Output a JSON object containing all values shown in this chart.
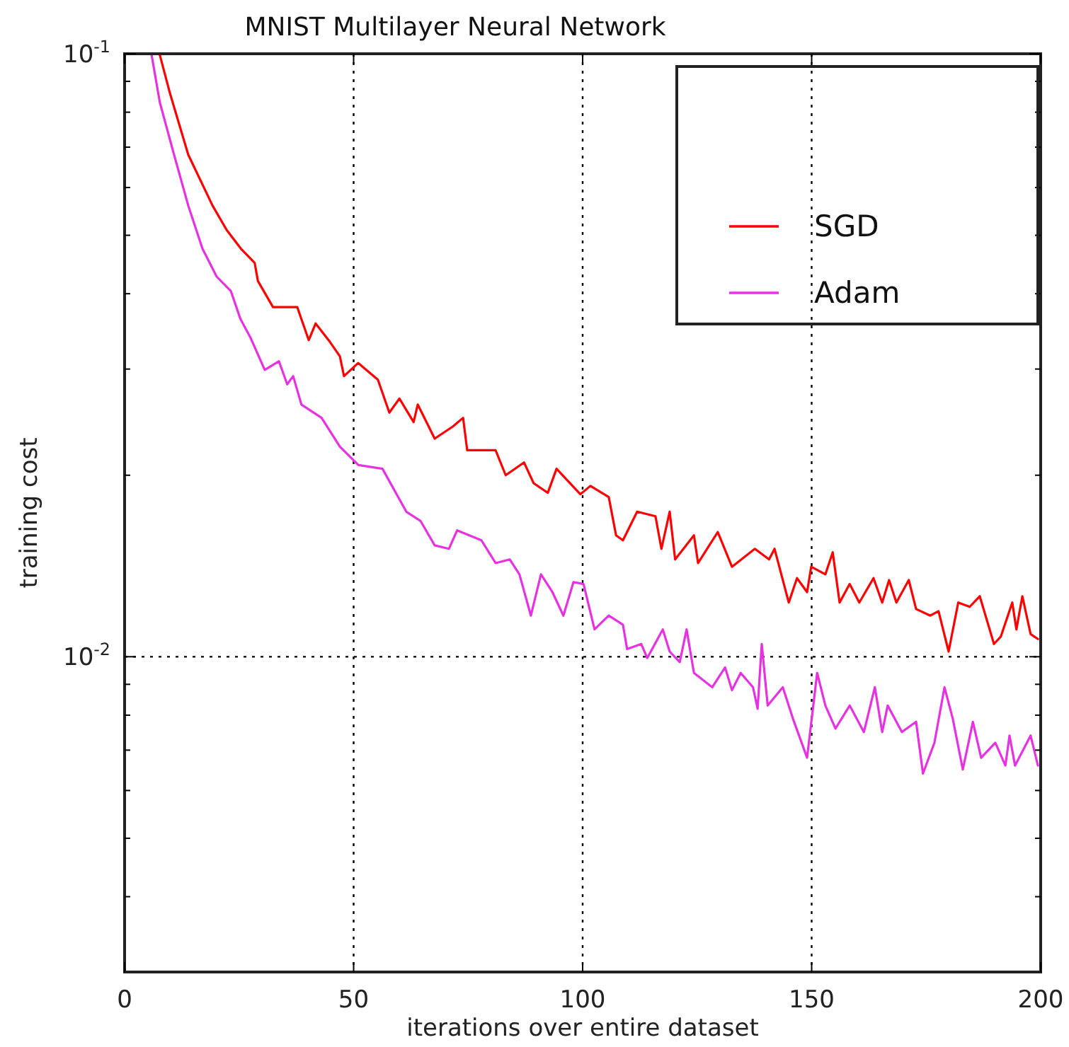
{
  "chart_data": {
    "type": "line",
    "title": "MNIST Multilayer Neural Network",
    "xlabel": "iterations over entire dataset",
    "ylabel": "training cost",
    "xlim": [
      0,
      200
    ],
    "xticks": [
      0,
      50,
      100,
      150,
      200
    ],
    "ylim": [
      0.003,
      0.1
    ],
    "log": "y",
    "yticks": [
      {
        "value": 0.004,
        "label": null
      },
      {
        "value": 0.005,
        "label": null
      },
      {
        "value": 0.006,
        "label": null
      },
      {
        "value": 0.007,
        "label": null
      },
      {
        "value": 0.008,
        "label": null
      },
      {
        "value": 0.009,
        "label": null
      },
      {
        "value": 0.01,
        "label": "10$^{-2}$"
      },
      {
        "value": 0.02,
        "label": null
      },
      {
        "value": 0.03,
        "label": null
      },
      {
        "value": 0.04,
        "label": null
      },
      {
        "value": 0.05,
        "label": null
      },
      {
        "value": 0.06,
        "label": null
      },
      {
        "value": 0.07,
        "label": null
      },
      {
        "value": 0.08,
        "label": null
      },
      {
        "value": 0.09,
        "label": null
      },
      {
        "value": 0.1,
        "label": "10$^{-1}$"
      }
    ],
    "grid": true,
    "legend": "top right",
    "line_style": "solid",
    "series": [
      {
        "name": "SGD",
        "color": "#ff0000",
        "x": [
          7.7,
          9.9,
          13.9,
          19.2,
          22.3,
          25.4,
          28.4,
          29.1,
          32.4,
          37.7,
          40.2,
          41.7,
          44.8,
          47,
          47.9,
          51,
          55.3,
          57.8,
          60,
          63.1,
          64,
          67.7,
          71.7,
          73.9,
          74.8,
          81,
          83.2,
          87.2,
          89.3,
          92.4,
          94.3,
          99.5,
          101.7,
          105.7,
          107.3,
          108.8,
          111.9,
          115.9,
          117.2,
          119,
          120.2,
          124.3,
          125.2,
          129.5,
          132.6,
          137.6,
          140.7,
          141.9,
          145,
          146.8,
          149,
          149.9,
          153,
          154.6,
          156.1,
          158.3,
          160.4,
          163.5,
          165.4,
          166.9,
          168.5,
          171.2,
          172.8,
          175.9,
          177.7,
          179.9,
          182,
          184.5,
          186.7,
          189.8,
          191.3,
          193.8,
          194.7,
          196,
          197.8,
          199.4
        ],
        "values": [
          0.0995,
          0.086,
          0.068,
          0.056,
          0.051,
          0.0475,
          0.045,
          0.042,
          0.038,
          0.038,
          0.0335,
          0.0357,
          0.0333,
          0.0315,
          0.0292,
          0.0307,
          0.0288,
          0.0254,
          0.0268,
          0.0245,
          0.0262,
          0.023,
          0.0241,
          0.0249,
          0.022,
          0.022,
          0.02,
          0.021,
          0.0194,
          0.0187,
          0.0205,
          0.0186,
          0.0192,
          0.0184,
          0.0159,
          0.0156,
          0.0174,
          0.0171,
          0.0151,
          0.0174,
          0.0145,
          0.0159,
          0.0143,
          0.0161,
          0.0141,
          0.0151,
          0.0145,
          0.0151,
          0.0123,
          0.0135,
          0.0128,
          0.0141,
          0.0137,
          0.0149,
          0.0123,
          0.0132,
          0.0123,
          0.0135,
          0.0123,
          0.0134,
          0.0123,
          0.0134,
          0.012,
          0.0117,
          0.0119,
          0.0102,
          0.0123,
          0.0121,
          0.0126,
          0.0105,
          0.0108,
          0.0123,
          0.0111,
          0.0126,
          0.0109,
          0.0107
        ]
      },
      {
        "name": "Adam",
        "color": "#e632e0",
        "x": [
          5.9,
          7.7,
          10.8,
          13.9,
          17,
          20.1,
          23.2,
          25.3,
          27.5,
          30.6,
          33.7,
          35.5,
          36.8,
          38.6,
          43,
          47,
          51,
          56.3,
          61.5,
          64.6,
          67.7,
          70.8,
          72.6,
          77.9,
          81,
          84.1,
          86.2,
          88.7,
          90.9,
          93.4,
          95.8,
          98,
          100.2,
          102.6,
          105.7,
          108.8,
          109.7,
          112.8,
          114.1,
          117.5,
          119,
          121.2,
          122.7,
          124.3,
          128.3,
          131.1,
          132.6,
          134.5,
          137.2,
          138.2,
          139.1,
          140.4,
          143.7,
          145.9,
          149,
          151.2,
          153,
          155.2,
          158.3,
          161.4,
          163.8,
          165.4,
          166.6,
          169.7,
          172.8,
          174.3,
          176.8,
          179,
          180.8,
          183,
          185.2,
          187,
          190.1,
          192.3,
          193.2,
          194.4,
          197.8,
          199.4
        ],
        "values": [
          0.0995,
          0.083,
          0.068,
          0.056,
          0.0475,
          0.0427,
          0.0404,
          0.0363,
          0.0338,
          0.0299,
          0.0309,
          0.0283,
          0.0292,
          0.0262,
          0.0249,
          0.0223,
          0.0208,
          0.0205,
          0.0174,
          0.0168,
          0.0153,
          0.0151,
          0.0162,
          0.0156,
          0.0143,
          0.0145,
          0.0137,
          0.0117,
          0.0137,
          0.0128,
          0.0117,
          0.0133,
          0.0132,
          0.0111,
          0.0117,
          0.0113,
          0.0103,
          0.0105,
          0.00995,
          0.0111,
          0.0102,
          0.0098,
          0.0111,
          0.0094,
          0.0089,
          0.0096,
          0.0088,
          0.0094,
          0.0089,
          0.0082,
          0.0105,
          0.0083,
          0.0089,
          0.0079,
          0.0068,
          0.0094,
          0.0083,
          0.0076,
          0.0083,
          0.0075,
          0.0089,
          0.0075,
          0.0083,
          0.0075,
          0.0078,
          0.0064,
          0.0072,
          0.0089,
          0.0079,
          0.0065,
          0.0078,
          0.0068,
          0.0072,
          0.0066,
          0.0074,
          0.0066,
          0.0074,
          0.0066
        ]
      }
    ]
  }
}
